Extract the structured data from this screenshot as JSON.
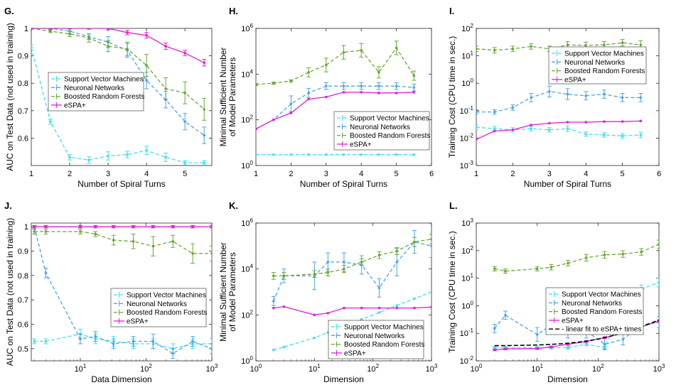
{
  "colors": {
    "svm": "#3ee0ea",
    "nn": "#4aa3e8",
    "brf": "#66a832",
    "espa": "#e01ed8",
    "fit": "#000000"
  },
  "chart_data": [
    {
      "id": "G",
      "panel_label": "G.",
      "type": "line",
      "xlabel": "Number of Spiral Turns",
      "ylabel": "AUC on Test Data (not used in training)",
      "xscale": "linear",
      "yscale": "linear",
      "xlim": [
        1,
        5.7
      ],
      "ylim": [
        0.5,
        1.0
      ],
      "xticks": [
        1,
        2,
        3,
        4,
        5
      ],
      "xtick_labels": [
        "1",
        "2",
        "3",
        "4",
        "5"
      ],
      "yticks": [
        0.6,
        0.7,
        0.8,
        0.9,
        1.0
      ],
      "ytick_labels": [
        "0.6",
        "0.7",
        "0.8",
        "0.9",
        "1"
      ],
      "legend_loc": "middle-left",
      "legend": [
        "Support Vector Machines",
        "Neuronal Networks",
        "Boosted Random Forests",
        "eSPA+"
      ],
      "x": [
        1,
        1.5,
        2,
        2.5,
        3,
        3.5,
        4,
        4.5,
        5,
        5.5
      ],
      "series": [
        {
          "name": "Support Vector Machines",
          "key": "svm",
          "values": [
            0.93,
            0.66,
            0.53,
            0.52,
            0.535,
            0.54,
            0.555,
            0.53,
            0.51,
            0.51
          ],
          "err": [
            0.01,
            0.01,
            0.01,
            0.012,
            0.015,
            0.012,
            0.015,
            0.015,
            0.008,
            0.008
          ]
        },
        {
          "name": "Neuronal Networks",
          "key": "nn",
          "values": [
            1.0,
            1.0,
            0.99,
            0.97,
            0.95,
            0.92,
            0.81,
            0.74,
            0.66,
            0.61
          ],
          "err": [
            0.003,
            0.005,
            0.01,
            0.01,
            0.02,
            0.025,
            0.03,
            0.03,
            0.03,
            0.03
          ]
        },
        {
          "name": "Boosted Random Forests",
          "key": "brf",
          "values": [
            1.0,
            0.99,
            0.98,
            0.965,
            0.935,
            0.925,
            0.865,
            0.78,
            0.765,
            0.705
          ],
          "err": [
            0.003,
            0.005,
            0.01,
            0.015,
            0.02,
            0.025,
            0.04,
            0.04,
            0.04,
            0.04
          ]
        },
        {
          "name": "eSPA+",
          "key": "espa",
          "values": [
            1.0,
            1.0,
            1.0,
            1.0,
            1.0,
            0.985,
            0.975,
            0.935,
            0.91,
            0.875
          ],
          "err": [
            0.002,
            0.002,
            0.002,
            0.003,
            0.005,
            0.008,
            0.01,
            0.012,
            0.01,
            0.012
          ]
        }
      ]
    },
    {
      "id": "H",
      "panel_label": "H.",
      "type": "line",
      "xlabel": "Number of Spiral Turns",
      "ylabel": "Minimal Sufficient Number of Model Parameters",
      "xscale": "linear",
      "yscale": "log",
      "xlim": [
        1,
        6
      ],
      "ylim": [
        1,
        1000000
      ],
      "xticks": [
        1,
        2,
        3,
        4,
        5,
        6
      ],
      "xtick_labels": [
        "1",
        "2",
        "3",
        "4",
        "5",
        "6"
      ],
      "yticks": [
        1,
        100,
        10000,
        1000000
      ],
      "ytick_labels": [
        "10^0",
        "10^2",
        "10^4",
        "10^6"
      ],
      "legend_loc": "bottom-right",
      "legend": [
        "Support Vector Machines",
        "Neuronal Networks",
        "Boosted Random Forests",
        "eSPA+"
      ],
      "x": [
        1,
        1.5,
        2,
        2.5,
        3,
        3.5,
        4,
        4.5,
        5,
        5.5
      ],
      "series": [
        {
          "name": "Support Vector Machines",
          "key": "svm",
          "values": [
            3,
            3,
            3,
            3,
            3,
            3,
            3,
            3,
            3,
            3
          ],
          "err": [
            0,
            0,
            0,
            0,
            0,
            0,
            0,
            0,
            0,
            0
          ]
        },
        {
          "name": "Neuronal Networks",
          "key": "nn",
          "values": [
            40,
            100,
            500,
            1500,
            3000,
            3000,
            3000,
            3000,
            3000,
            2600
          ],
          "err": [
            0,
            0,
            0.35,
            0.2,
            0.15,
            0.15,
            0.15,
            0.15,
            0.15,
            0.15
          ]
        },
        {
          "name": "Boosted Random Forests",
          "key": "brf",
          "values": [
            3500,
            4000,
            5000,
            12000,
            25000,
            90000,
            110000,
            12000,
            140000,
            8500
          ],
          "err": [
            0.05,
            0.05,
            0.05,
            0.2,
            0.3,
            0.3,
            0.3,
            0.25,
            0.3,
            0.2
          ]
        },
        {
          "name": "eSPA+",
          "key": "espa",
          "values": [
            40,
            100,
            200,
            800,
            1000,
            1600,
            1600,
            1500,
            1500,
            1600
          ],
          "err": [
            0,
            0,
            0,
            0,
            0,
            0,
            0,
            0,
            0,
            0
          ]
        }
      ]
    },
    {
      "id": "I",
      "panel_label": "I.",
      "type": "line",
      "xlabel": "Number of Spiral Turns",
      "ylabel": "Training Cost (CPU time in sec.)",
      "xscale": "linear",
      "yscale": "log",
      "xlim": [
        1,
        6
      ],
      "ylim": [
        0.001,
        100
      ],
      "xticks": [
        1,
        2,
        3,
        4,
        5,
        6
      ],
      "xtick_labels": [
        "1",
        "2",
        "3",
        "4",
        "5",
        "6"
      ],
      "yticks": [
        0.001,
        0.01,
        0.1,
        1,
        10,
        100
      ],
      "ytick_labels": [
        "10^-3",
        "10^-2",
        "10^-1",
        "10^0",
        "10^1",
        "10^2"
      ],
      "legend_loc": "top-right",
      "legend": [
        "Support Vector Machines",
        "Neuronal Networks",
        "Boosted Random Forests",
        "eSPA+"
      ],
      "x": [
        1,
        1.5,
        2,
        2.5,
        3,
        3.5,
        4,
        4.5,
        5,
        5.5
      ],
      "series": [
        {
          "name": "Support Vector Machines",
          "key": "svm",
          "values": [
            0.025,
            0.022,
            0.02,
            0.022,
            0.02,
            0.022,
            0.014,
            0.013,
            0.012,
            0.013
          ],
          "err": [
            0.08,
            0.08,
            0.08,
            0.08,
            0.08,
            0.1,
            0.08,
            0.08,
            0.08,
            0.1
          ]
        },
        {
          "name": "Neuronal Networks",
          "key": "nn",
          "values": [
            0.09,
            0.09,
            0.13,
            0.3,
            0.5,
            0.4,
            0.35,
            0.4,
            0.3,
            0.3
          ],
          "err": [
            0.08,
            0.08,
            0.1,
            0.15,
            0.2,
            0.2,
            0.15,
            0.15,
            0.15,
            0.15
          ]
        },
        {
          "name": "Boosted Random Forests",
          "key": "brf",
          "values": [
            18,
            16,
            18,
            22,
            18,
            25,
            24,
            25,
            30,
            25
          ],
          "err": [
            0.1,
            0.1,
            0.1,
            0.1,
            0.1,
            0.12,
            0.12,
            0.12,
            0.12,
            0.15
          ]
        },
        {
          "name": "eSPA+",
          "key": "espa",
          "values": [
            0.009,
            0.018,
            0.02,
            0.03,
            0.035,
            0.038,
            0.038,
            0.04,
            0.04,
            0.042
          ],
          "err": [
            0,
            0,
            0,
            0,
            0,
            0,
            0,
            0,
            0,
            0
          ]
        }
      ]
    },
    {
      "id": "J",
      "panel_label": "J.",
      "type": "line",
      "xlabel": "Data Dimension",
      "ylabel": "AUC on Test Data (not used in training)",
      "xscale": "log",
      "yscale": "linear",
      "xlim": [
        1.8,
        1000
      ],
      "ylim": [
        0.45,
        1.015
      ],
      "xticks": [
        10,
        100,
        1000
      ],
      "xtick_labels": [
        "10^1",
        "10^2",
        "10^3"
      ],
      "yticks": [
        0.5,
        0.6,
        0.7,
        0.8,
        0.9,
        1.0
      ],
      "ytick_labels": [
        "0.5",
        "0.6",
        "0.7",
        "0.8",
        "0.9",
        "1"
      ],
      "legend_loc": "bottom-right",
      "legend": [
        "Support Vector Machines",
        "Neuronal Networks",
        "Boosted Random Forests",
        "eSPA+"
      ],
      "x": [
        2,
        3,
        10,
        17,
        32,
        64,
        128,
        256,
        512,
        1000
      ],
      "series": [
        {
          "name": "Support Vector Machines",
          "key": "svm",
          "values": [
            0.53,
            0.53,
            0.56,
            0.54,
            0.53,
            0.52,
            0.52,
            0.5,
            0.52,
            0.52
          ],
          "err": [
            0.01,
            0.01,
            0.02,
            0.02,
            0.02,
            0.02,
            0.02,
            0.02,
            0.02,
            0.02
          ]
        },
        {
          "name": "Neuronal Networks",
          "key": "nn",
          "values": [
            1.0,
            0.81,
            0.54,
            0.55,
            0.52,
            0.53,
            0.53,
            0.48,
            0.53,
            0.5
          ],
          "err": [
            0.005,
            0.02,
            0.02,
            0.02,
            0.02,
            0.02,
            0.03,
            0.02,
            0.02,
            0.02
          ]
        },
        {
          "name": "Boosted Random Forests",
          "key": "brf",
          "values": [
            0.98,
            0.98,
            0.98,
            0.97,
            0.945,
            0.94,
            0.92,
            0.94,
            0.89,
            0.89
          ],
          "err": [
            0.01,
            0.01,
            0.01,
            0.01,
            0.02,
            0.03,
            0.04,
            0.025,
            0.04,
            0.03
          ]
        },
        {
          "name": "eSPA+",
          "key": "espa",
          "values": [
            1.0,
            1.0,
            1.0,
            1.0,
            1.0,
            1.0,
            1.0,
            1.0,
            1.0,
            1.0
          ],
          "err": [
            0.005,
            0.005,
            0.005,
            0.005,
            0.005,
            0.005,
            0.005,
            0.005,
            0.005,
            0.005
          ]
        }
      ]
    },
    {
      "id": "K",
      "panel_label": "K.",
      "type": "line",
      "xlabel": "Dimension",
      "ylabel": "Minimal Sufficient Number of Model Parameters",
      "xscale": "log",
      "yscale": "log",
      "xlim": [
        1,
        1000
      ],
      "ylim": [
        1,
        1000000
      ],
      "xticks": [
        1,
        10,
        100,
        1000
      ],
      "xtick_labels": [
        "10^0",
        "10^1",
        "10^2",
        "10^3"
      ],
      "yticks": [
        1,
        100,
        10000,
        1000000
      ],
      "ytick_labels": [
        "10^0",
        "10^2",
        "10^4",
        "10^6"
      ],
      "legend_loc": "bottom-right",
      "legend": [
        "Support Vector Machines",
        "Neuronal Networks",
        "Boosted Random Forests",
        "eSPA+"
      ],
      "x": [
        2,
        3,
        10,
        17,
        32,
        64,
        128,
        256,
        512,
        1000
      ],
      "series": [
        {
          "name": "Support Vector Machines",
          "key": "svm",
          "values": [
            3,
            4,
            10,
            17,
            32,
            64,
            128,
            256,
            512,
            1000
          ],
          "err": [
            0,
            0,
            0,
            0,
            0,
            0,
            0,
            0,
            0,
            0
          ]
        },
        {
          "name": "Neuronal Networks",
          "key": "nn",
          "values": [
            400,
            5000,
            5000,
            20000,
            20000,
            15000,
            1500,
            20000,
            150000,
            100000
          ],
          "err": [
            0.2,
            0.3,
            0.6,
            0.4,
            0.4,
            0.4,
            0.4,
            0.6,
            0.5,
            0.5
          ]
        },
        {
          "name": "Boosted Random Forests",
          "key": "brf",
          "values": [
            5000,
            5000,
            6000,
            7000,
            10000,
            20000,
            40000,
            60000,
            150000,
            200000
          ],
          "err": [
            0.15,
            0.15,
            0.15,
            0.15,
            0.15,
            0.15,
            0.15,
            0.15,
            0.2,
            0.2
          ]
        },
        {
          "name": "eSPA+",
          "key": "espa",
          "values": [
            200,
            230,
            100,
            120,
            200,
            200,
            200,
            200,
            200,
            220
          ],
          "err": [
            0,
            0,
            0,
            0,
            0,
            0,
            0,
            0,
            0,
            0
          ]
        }
      ]
    },
    {
      "id": "L",
      "panel_label": "L.",
      "type": "line",
      "xlabel": "Dimension",
      "ylabel": "Training Cost (CPU time in sec.)",
      "xscale": "log",
      "yscale": "log",
      "xlim": [
        1,
        1000
      ],
      "ylim": [
        0.01,
        1000
      ],
      "xticks": [
        1,
        10,
        100,
        1000
      ],
      "xtick_labels": [
        "10^0",
        "10^1",
        "10^2",
        "10^3"
      ],
      "yticks": [
        0.01,
        0.1,
        1,
        10,
        100,
        1000
      ],
      "ytick_labels": [
        "10^-2",
        "10^-1",
        "10^0",
        "10^1",
        "10^2",
        "10^3"
      ],
      "legend_loc": "bottom-right",
      "legend": [
        "Support Vector Machines",
        "Neuronal Networks",
        "Boosted Random Forests",
        "eSPA+",
        "linear fit to eSPA+ times"
      ],
      "x": [
        2,
        3,
        10,
        17,
        32,
        64,
        128,
        256,
        512,
        1000
      ],
      "series": [
        {
          "name": "Support Vector Machines",
          "key": "svm",
          "values": [
            0.03,
            0.03,
            0.03,
            0.03,
            0.03,
            0.04,
            0.03,
            1.2,
            4,
            7
          ],
          "err": [
            0.05,
            0.05,
            0.05,
            0.05,
            0.05,
            0.05,
            0.05,
            0.2,
            0.15,
            0.15
          ]
        },
        {
          "name": "Neuronal Networks",
          "key": "nn",
          "values": [
            0.15,
            0.45,
            0.09,
            0.2,
            0.12,
            0.12,
            0.04,
            0.06,
            0.2,
            0.25
          ],
          "err": [
            0.15,
            0.15,
            0.25,
            0.25,
            0.25,
            0.25,
            0.2,
            0.2,
            0.2,
            0.2
          ]
        },
        {
          "name": "Boosted Random Forests",
          "key": "brf",
          "values": [
            22,
            18,
            22,
            25,
            35,
            55,
            70,
            75,
            90,
            170
          ],
          "err": [
            0.08,
            0.08,
            0.08,
            0.1,
            0.1,
            0.12,
            0.12,
            0.12,
            0.12,
            0.15
          ]
        },
        {
          "name": "eSPA+",
          "key": "espa",
          "values": [
            0.025,
            0.027,
            0.028,
            0.032,
            0.04,
            0.05,
            0.07,
            0.1,
            0.17,
            0.28
          ],
          "err": [
            0.03,
            0.03,
            0.03,
            0.03,
            0.03,
            0.03,
            0.03,
            0.03,
            0.03,
            0.03
          ]
        }
      ],
      "fit": {
        "name": "linear fit to eSPA+ times",
        "x": [
          2,
          1000
        ],
        "intercept": 0.035,
        "slope": 0.00027
      }
    }
  ]
}
